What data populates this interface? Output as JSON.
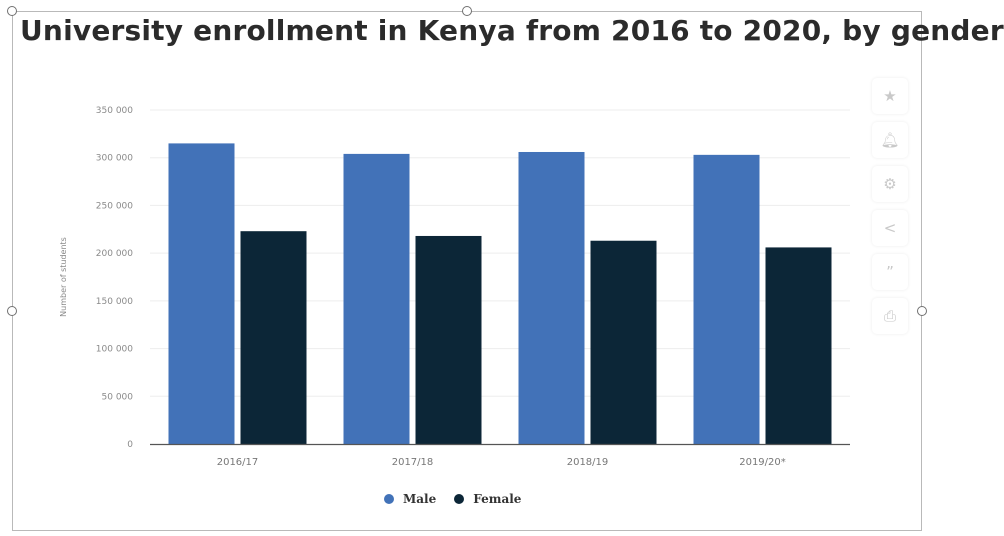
{
  "title": "University enrollment in Kenya from 2016 to 2020, by gender",
  "sidebar": {
    "icons": [
      "star-icon",
      "bell-icon",
      "gear-icon",
      "share-icon",
      "quote-icon",
      "print-icon"
    ]
  },
  "colors": {
    "male": "#4272b8",
    "female": "#0c2637",
    "axis": "#555555",
    "tick_text": "#8a8a8a"
  },
  "chart_data": {
    "type": "bar",
    "title": "University enrollment in Kenya from 2016 to 2020, by gender",
    "xlabel": "",
    "ylabel": "Number of students",
    "categories": [
      "2016/17",
      "2017/18",
      "2018/19",
      "2019/20*"
    ],
    "series": [
      {
        "name": "Male",
        "values": [
          315000,
          304000,
          306000,
          303000
        ]
      },
      {
        "name": "Female",
        "values": [
          223000,
          218000,
          213000,
          206000
        ]
      }
    ],
    "ylim": [
      0,
      350000
    ],
    "yticks": [
      0,
      50000,
      100000,
      150000,
      200000,
      250000,
      300000,
      350000
    ],
    "ytick_labels": [
      "0",
      "50 000",
      "100 000",
      "150 000",
      "200 000",
      "250 000",
      "300 000",
      "350 000"
    ],
    "grid": true,
    "legend_position": "bottom"
  }
}
